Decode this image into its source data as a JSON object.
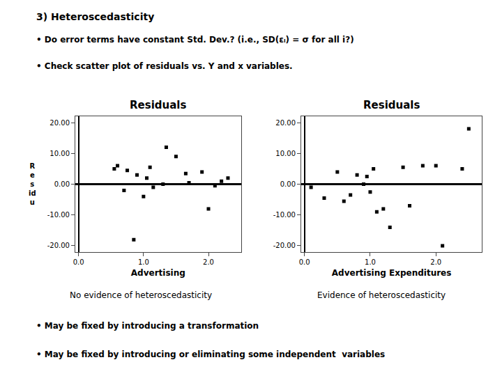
{
  "title": "3) Heteroscedasticity",
  "annotations": [
    "• Do error terms have constant Std. Dev.? (i.e., SD(εᵢ) = σ for all i?)",
    "• Check scatter plot of residuals vs. Y and x variables.",
    "• May be fixed by introducing a transformation",
    "• May be fixed by introducing or eliminating some independent  variables"
  ],
  "chart_data": [
    {
      "type": "scatter",
      "title": "Residuals",
      "x_label": "Advertising",
      "y_label": "R\ne\ns\nid\nu",
      "x": [
        0.55,
        0.6,
        0.7,
        0.75,
        0.85,
        0.9,
        1.0,
        1.05,
        1.1,
        1.15,
        1.3,
        1.35,
        1.5,
        1.65,
        1.7,
        1.9,
        2.0,
        2.1,
        2.2,
        2.3
      ],
      "values": [
        5.0,
        6.0,
        -2.0,
        4.5,
        -18.0,
        3.0,
        -4.0,
        2.0,
        5.5,
        -1.0,
        0.0,
        12.0,
        9.0,
        3.5,
        0.5,
        4.0,
        -8.0,
        -0.5,
        1.0,
        2.0
      ],
      "color": "black",
      "marker": "square",
      "xlim": [
        -0.05,
        2.5
      ],
      "ylim": [
        -22,
        22
      ],
      "xticks": [
        {
          "value": 0,
          "label": "0.0"
        },
        {
          "value": 1,
          "label": "1.0"
        },
        {
          "value": 2,
          "label": "2.0"
        }
      ],
      "yticks": [
        {
          "value": -20,
          "label": "-20.00"
        },
        {
          "value": -10,
          "label": "-10.00"
        },
        {
          "value": 0,
          "label": "0.00"
        },
        {
          "value": 10,
          "label": "10.00"
        },
        {
          "value": 20,
          "label": "20.00"
        }
      ],
      "grid": false,
      "annotations": [
        "No evidence of heteroscedasticity"
      ]
    },
    {
      "type": "scatter",
      "title": "Residuals",
      "x_label": "Advertising Expenditures",
      "x": [
        0.1,
        0.3,
        0.5,
        0.6,
        0.7,
        0.8,
        0.9,
        0.95,
        1.0,
        1.05,
        1.1,
        1.2,
        1.3,
        1.5,
        1.6,
        1.8,
        2.0,
        2.1,
        2.4,
        2.5
      ],
      "values": [
        -1.0,
        -4.5,
        4.0,
        -5.5,
        -3.5,
        3.0,
        0.0,
        2.5,
        -2.5,
        5.0,
        -9.0,
        -8.0,
        -14.0,
        5.5,
        -7.0,
        6.0,
        6.0,
        -20.0,
        5.0,
        18.0
      ],
      "color": "black",
      "marker": "square",
      "xlim": [
        -0.05,
        2.7
      ],
      "ylim": [
        -22,
        22
      ],
      "xticks": [
        {
          "value": 0,
          "label": "0.0"
        },
        {
          "value": 1,
          "label": "1.0"
        },
        {
          "value": 2,
          "label": "2.0"
        }
      ],
      "yticks": [
        {
          "value": -20,
          "label": "-20.00"
        },
        {
          "value": -10,
          "label": "-10.00"
        },
        {
          "value": 0,
          "label": "0.00"
        },
        {
          "value": 10,
          "label": "10.00"
        },
        {
          "value": 20,
          "label": "20.00"
        }
      ],
      "grid": false,
      "annotations": [
        "Evidence of heteroscedasticity"
      ]
    }
  ]
}
